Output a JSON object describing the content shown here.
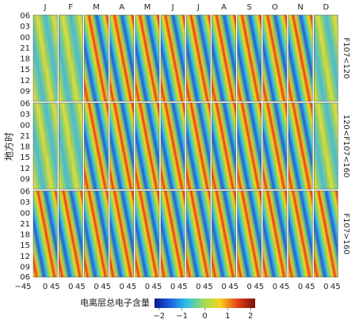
{
  "figure": {
    "months": [
      "J",
      "F",
      "M",
      "A",
      "M",
      "J",
      "J",
      "A",
      "S",
      "O",
      "N",
      "D"
    ],
    "y_label": "地方时",
    "y_ticks": [
      "06",
      "03",
      "00",
      "21",
      "18",
      "15",
      "12",
      "09"
    ],
    "y_tick_bottom": "06",
    "x_ticks": [
      "−45",
      "0",
      "45"
    ],
    "rows": [
      "F107<120",
      "120<F107<160",
      "F107>160"
    ],
    "colorbar": {
      "label": "电离层总电子含量",
      "clim": [
        -2.2,
        2.2
      ],
      "ticks": [
        {
          "value": -2,
          "label": "−2"
        },
        {
          "value": -1,
          "label": "−1"
        },
        {
          "value": 0,
          "label": "0"
        },
        {
          "value": 1,
          "label": "1"
        },
        {
          "value": 2,
          "label": "2"
        }
      ]
    }
  }
}
